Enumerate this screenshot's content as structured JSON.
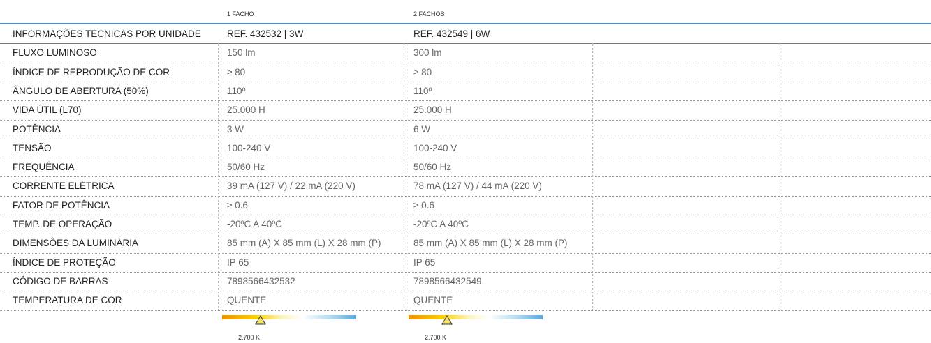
{
  "table": {
    "columns": [
      "1 FACHO",
      "2 FACHOS"
    ],
    "header": [
      "INFORMAÇÕES TÉCNICAS POR UNIDADE",
      "REF. 432532 | 3W",
      "REF. 432549 | 6W"
    ],
    "rows": [
      [
        "FLUXO LUMINOSO",
        "150 lm",
        "300 lm"
      ],
      [
        "ÍNDICE DE REPRODUÇÃO DE COR",
        "≥  80",
        "≥  80"
      ],
      [
        "ÂNGULO DE ABERTURA (50%)",
        "110º",
        "110º"
      ],
      [
        "VIDA ÚTIL (L70)",
        "25.000 H",
        "25.000 H"
      ],
      [
        "POTÊNCIA",
        "3 W",
        "6 W"
      ],
      [
        "TENSÃO",
        "100-240 V",
        "100-240 V"
      ],
      [
        "FREQUÊNCIA",
        "50/60 Hz",
        "50/60 Hz"
      ],
      [
        "CORRENTE ELÉTRICA",
        "39 mA (127 V) / 22 mA (220 V)",
        "78 mA (127 V) / 44 mA (220 V)"
      ],
      [
        "FATOR DE POTÊNCIA",
        "≥ 0.6",
        "≥ 0.6"
      ],
      [
        "TEMP. DE OPERAÇÃO",
        "-20ºC A 40ºC",
        "-20ºC A 40ºC"
      ],
      [
        "DIMENSÕES DA LUMINÁRIA",
        "85 mm (A) X 85 mm (L) X 28 mm (P)",
        "85 mm (A) X 85 mm (L) X 28 mm (P)"
      ],
      [
        "ÍNDICE DE PROTEÇÃO",
        "IP 65",
        "IP 65"
      ],
      [
        "CÓDIGO DE BARRAS",
        "7898566432532",
        "7898566432549"
      ],
      [
        "TEMPERATURA DE COR",
        "QUENTE",
        "QUENTE"
      ]
    ],
    "color_temperature": [
      "2.700 K",
      "2.700 K"
    ]
  }
}
